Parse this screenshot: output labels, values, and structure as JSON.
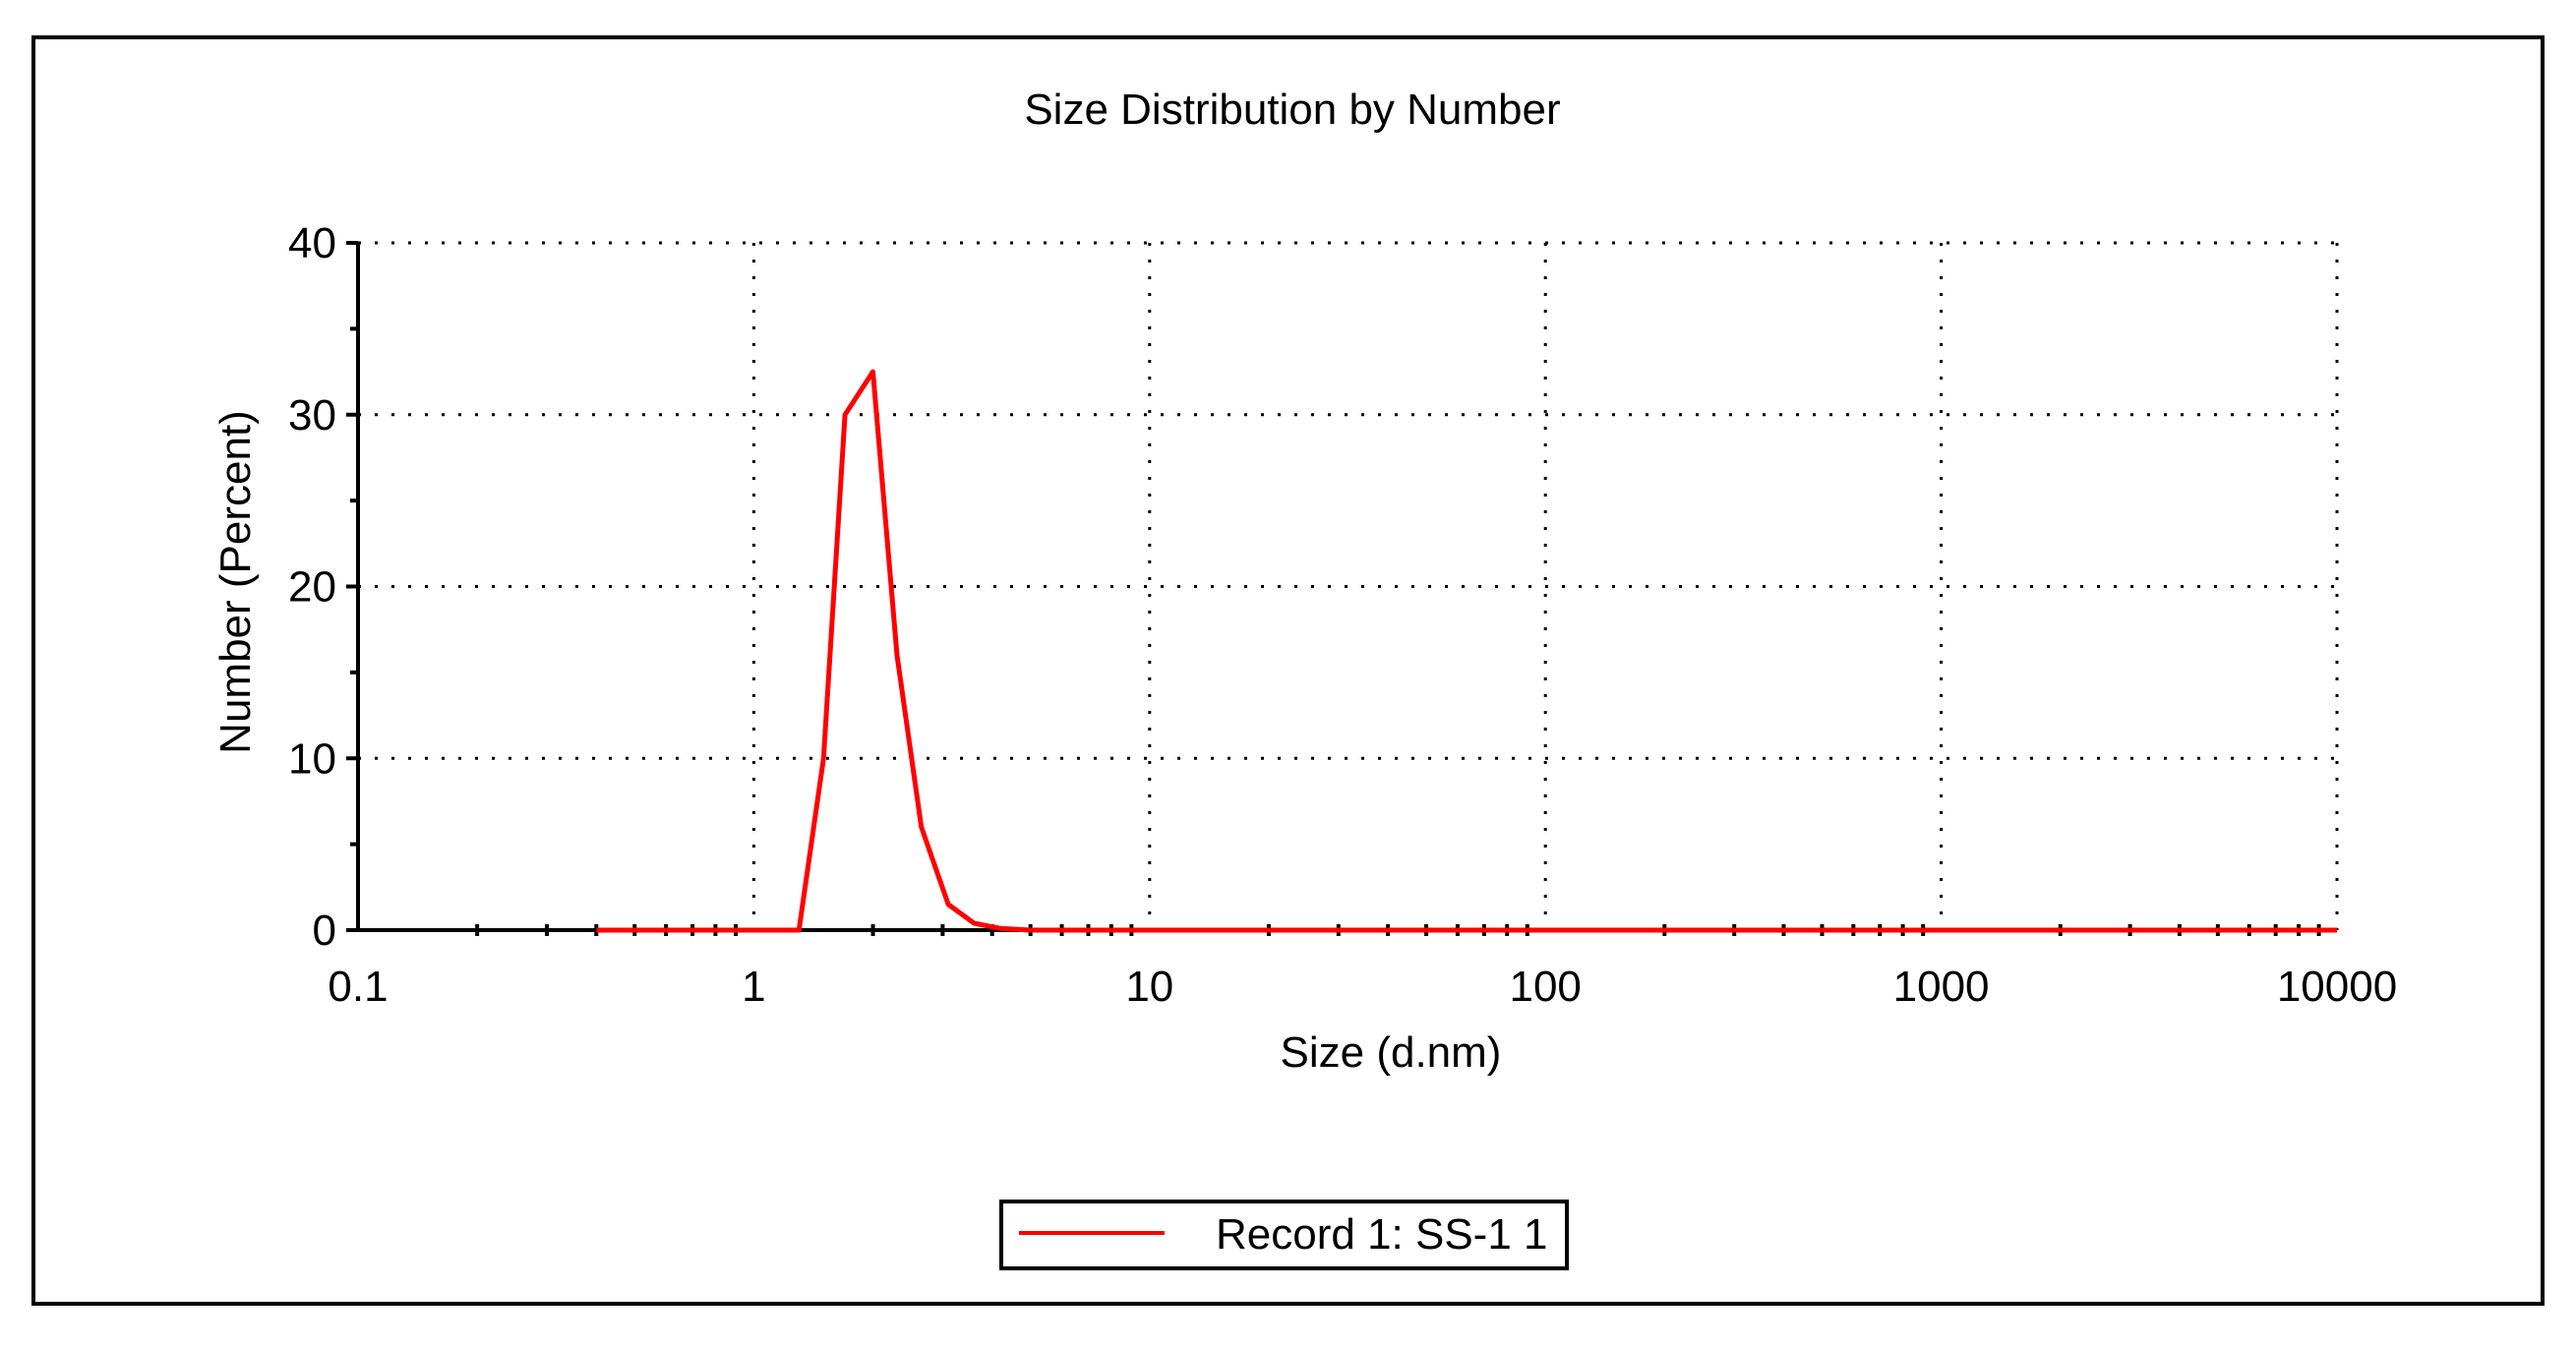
{
  "chart_data": {
    "type": "line",
    "title": "Size Distribution by Number",
    "xlabel": "Size (d.nm)",
    "ylabel": "Number (Percent)",
    "x_scale": "log",
    "xlim": [
      0.1,
      10000
    ],
    "ylim": [
      0,
      40
    ],
    "x_ticks": [
      "0.1",
      "1",
      "10",
      "100",
      "1000",
      "10000"
    ],
    "y_ticks": [
      "0",
      "10",
      "20",
      "30",
      "40"
    ],
    "grid": true,
    "legend_position": "bottom",
    "series": [
      {
        "name": "Record 1: SS-1 1",
        "color": "#ff0000",
        "points": [
          [
            0.4,
            0
          ],
          [
            1.0,
            0
          ],
          [
            1.3,
            0
          ],
          [
            1.5,
            10
          ],
          [
            1.7,
            30
          ],
          [
            2.0,
            32.5
          ],
          [
            2.3,
            16
          ],
          [
            2.65,
            6
          ],
          [
            3.1,
            1.5
          ],
          [
            3.6,
            0.4
          ],
          [
            4.2,
            0.1
          ],
          [
            5.0,
            0
          ],
          [
            10,
            0
          ],
          [
            100,
            0
          ],
          [
            1000,
            0
          ],
          [
            10000,
            0
          ]
        ]
      }
    ]
  }
}
